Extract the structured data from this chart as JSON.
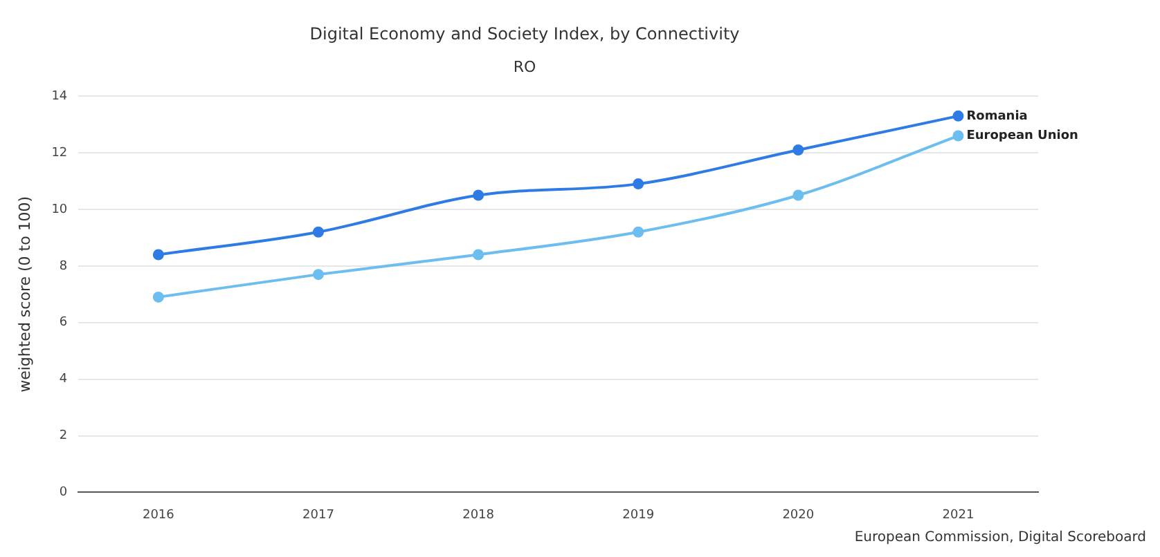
{
  "chart_data": {
    "type": "line",
    "title": "Digital Economy and Society Index, by Connectivity",
    "subtitle": "RO",
    "ylabel": "weighted score (0 to 100)",
    "categories": [
      "2016",
      "2017",
      "2018",
      "2019",
      "2020",
      "2021"
    ],
    "series": [
      {
        "name": "Romania",
        "color": "#2f7be6",
        "values": [
          8.4,
          9.2,
          10.5,
          10.9,
          12.1,
          13.3
        ]
      },
      {
        "name": "European Union",
        "color": "#6cbdf0",
        "values": [
          6.9,
          7.7,
          8.4,
          9.2,
          10.5,
          12.6
        ]
      }
    ],
    "ylim": [
      0,
      14
    ],
    "yticks": [
      0,
      2,
      4,
      6,
      8,
      10,
      12,
      14
    ],
    "grid": "y",
    "legend": false,
    "marker": "circle",
    "line_style": "solid",
    "annotations": [
      "European Commission, Digital Scoreboard"
    ]
  }
}
